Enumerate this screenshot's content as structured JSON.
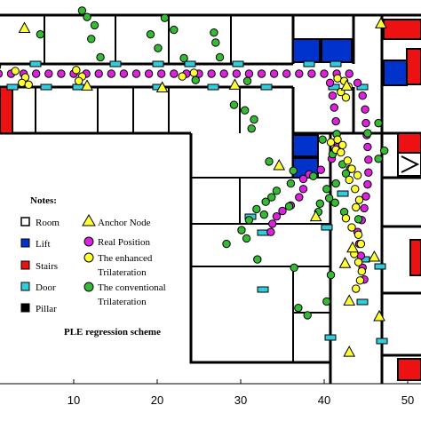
{
  "chart_data": {
    "type": "scatter",
    "title": "PLE regression scheme",
    "xlabel": "",
    "ylabel": "",
    "xlim": [
      0,
      50
    ],
    "x_ticks": [
      "10",
      "20",
      "30",
      "40",
      "50"
    ],
    "grid": false,
    "legend": {
      "title": "Notes:",
      "placement": "lower-left",
      "items": [
        {
          "label": "Room",
          "symbol": "white-square"
        },
        {
          "label": "Lift",
          "symbol": "blue-square"
        },
        {
          "label": "Stairs",
          "symbol": "red-square"
        },
        {
          "label": "Door",
          "symbol": "cyan-square"
        },
        {
          "label": "Pillar",
          "symbol": "black-square"
        },
        {
          "label": "Anchor Node",
          "symbol": "yellow-triangle"
        },
        {
          "label": "Real Position",
          "symbol": "magenta-circle"
        },
        {
          "label": "The enhanced Trilateration",
          "lines": [
            "The enhanced",
            "Trilateration"
          ],
          "symbol": "yellow-circle"
        },
        {
          "label": "The conventional Trilateration",
          "lines": [
            "The conventional",
            "Trilateration"
          ],
          "symbol": "green-circle"
        }
      ]
    },
    "colors": {
      "room": "#ffffff",
      "lift": "#0033cc",
      "stairs": "#ee1111",
      "door": "#33ccdd",
      "pillar": "#000000",
      "anchor": "#ffff33",
      "real": "#dd22dd",
      "enhanced": "#ffff33",
      "conventional": "#33bb33"
    },
    "series": [
      {
        "name": "Anchor Node",
        "marker": "triangle",
        "x": [
          4.1,
          11.6,
          20.6,
          29.3,
          34.6,
          39.0,
          42.7,
          42.5,
          43.0,
          43.0,
          43.4,
          46.6,
          46.8,
          46.0
        ],
        "y": [
          13.0,
          6.7,
          6.5,
          6.8,
          -2.0,
          -7.6,
          6.7,
          -12.7,
          -16.8,
          -22.4,
          -11.0,
          -18.5,
          13.5,
          -12.0
        ]
      },
      {
        "name": "Real Position",
        "marker": "circle",
        "x": [
          1.0,
          2.5,
          4.0,
          5.5,
          7.0,
          8.5,
          10.0,
          11.5,
          13.0,
          14.5,
          16.0,
          17.5,
          19.0,
          20.5,
          22.0,
          23.5,
          25.0,
          26.5,
          28.0,
          29.5,
          31.0,
          32.5,
          34.0,
          35.5,
          37.0,
          38.5,
          40.0,
          41.5,
          43.0,
          44.0,
          44.6,
          44.9,
          45.0,
          45.1,
          45.2,
          45.3,
          45.3,
          45.2,
          45.0,
          44.8,
          44.5,
          44.0,
          44.2,
          44.4,
          44.6,
          44.8,
          40.7,
          41.0,
          41.2,
          41.4,
          41.5,
          41.6,
          40.9,
          39.6,
          38.2,
          37.5,
          37.5,
          37.0,
          36.0,
          35.0,
          34.3,
          33.8,
          33.6
        ],
        "y": [
          8.0,
          8.0,
          8.0,
          8.0,
          8.0,
          8.0,
          8.0,
          8.0,
          8.0,
          8.0,
          8.0,
          8.0,
          8.0,
          8.0,
          8.0,
          8.0,
          8.0,
          8.0,
          8.0,
          8.0,
          8.0,
          8.0,
          8.0,
          8.0,
          8.0,
          8.0,
          8.0,
          8.0,
          8.0,
          7.0,
          5.6,
          4.1,
          2.6,
          1.3,
          0.0,
          -1.4,
          -2.8,
          -4.1,
          -5.4,
          -6.7,
          -8.0,
          -9.3,
          -10.6,
          -11.9,
          -13.2,
          -14.5,
          7.0,
          5.6,
          4.3,
          2.8,
          1.4,
          0.0,
          -1.3,
          -2.5,
          -3.0,
          -3.5,
          -4.6,
          -5.5,
          -6.4,
          -7.0,
          -7.6,
          -8.4,
          -9.3
        ]
      },
      {
        "name": "The enhanced Trilateration",
        "marker": "circle",
        "x": [
          3.0,
          4.2,
          3.8,
          4.6,
          10.3,
          11.0,
          10.6,
          24.4,
          23.0,
          41.6,
          42.4,
          42.9,
          42.0,
          42.6,
          40.8,
          41.6,
          42.2,
          41.4,
          42.0,
          42.8,
          43.3,
          44.0,
          43.0,
          43.7,
          44.2,
          43.8,
          42.6,
          43.3,
          44.1,
          44.4,
          43.6,
          44.1,
          44.5,
          44.3,
          43.8
        ],
        "y": [
          8.3,
          7.6,
          7.0,
          6.8,
          8.4,
          7.7,
          7.2,
          8.1,
          7.7,
          7.5,
          7.2,
          6.6,
          6.0,
          5.4,
          0.5,
          0.8,
          0.2,
          -0.3,
          -0.6,
          -1.5,
          -2.4,
          -3.1,
          -3.6,
          -4.6,
          -5.8,
          -6.6,
          -7.8,
          -8.8,
          -9.6,
          -10.6,
          -11.7,
          -12.6,
          -13.6,
          -14.6,
          -15.5
        ]
      },
      {
        "name": "The conventional Trilateration",
        "marker": "circle",
        "x": [
          0.8,
          6.0,
          11.0,
          11.6,
          12.5,
          12.1,
          13.2,
          19.2,
          20.9,
          22.0,
          20.1,
          23.2,
          24.6,
          26.8,
          27.5,
          27.0,
          30.8,
          29.2,
          30.5,
          31.6,
          31.3,
          33.4,
          36.3,
          38.7,
          39.8,
          41.5,
          45.2,
          46.5,
          47.2,
          46.5,
          41.0,
          42.2,
          43.1,
          42.6,
          41.4,
          40.3,
          40.6,
          39.5,
          39.3,
          41.3,
          42.4,
          44.1,
          36.0,
          34.3,
          33.7,
          35.8,
          33.0,
          31.9,
          32.8,
          31.0,
          30.1,
          30.7,
          28.3,
          32.0,
          36.4,
          40.8,
          40.3,
          36.9,
          38.0
        ],
        "y": [
          8.8,
          12.3,
          14.9,
          14.2,
          13.3,
          11.8,
          9.8,
          12.3,
          14.1,
          12.8,
          10.8,
          9.7,
          7.3,
          12.5,
          9.8,
          11.4,
          7.2,
          4.6,
          4.0,
          3.0,
          2.0,
          -1.6,
          -2.6,
          -3.2,
          0.8,
          1.4,
          1.5,
          2.6,
          -0.4,
          -1.3,
          -0.8,
          -1.9,
          -2.4,
          -2.9,
          -4.0,
          -4.6,
          -5.6,
          -6.2,
          -7.1,
          -6.1,
          -7.1,
          -7.9,
          -4.0,
          -4.8,
          -5.5,
          -6.5,
          -6.0,
          -6.8,
          -7.4,
          -8.0,
          -9.1,
          -10.0,
          -10.6,
          -12.3,
          -13.2,
          -14.0,
          -16.9,
          -17.6,
          -18.4
        ]
      }
    ]
  }
}
